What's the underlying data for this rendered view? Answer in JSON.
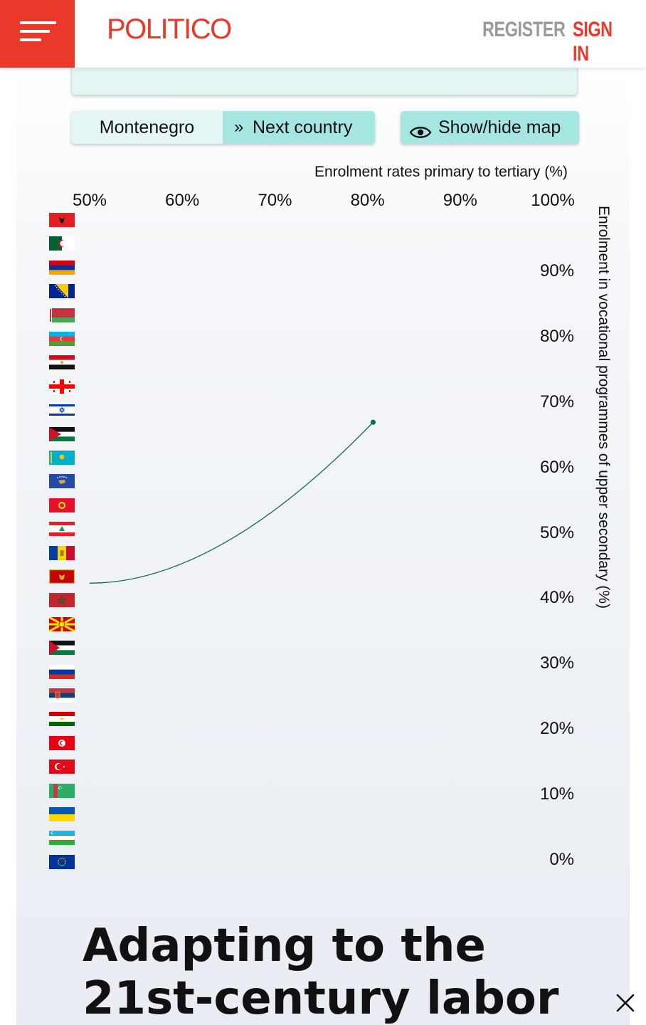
{
  "header": {
    "logo": "POLITICO",
    "register_label": "REGISTER",
    "signin_label": "SIGN IN",
    "menu_icon": "hamburger-menu-icon",
    "brand_color": "#e8392b"
  },
  "controls": {
    "selected_country": "Montenegro",
    "next_label": "Next country",
    "next_icon": "double-chevron-right-icon",
    "map_label": "Show/hide map",
    "map_icon": "eye-icon",
    "accent_color": "#a6e6e1"
  },
  "flags": [
    "Albania",
    "Algeria",
    "Armenia",
    "Bosnia and Herzegovina",
    "Belarus",
    "Azerbaijan",
    "Egypt",
    "Georgia",
    "Israel",
    "Jordan",
    "Kazakhstan",
    "Kosovo",
    "Kyrgyzstan",
    "Lebanon",
    "Moldova",
    "Montenegro",
    "Morocco",
    "North Macedonia",
    "Palestine",
    "Russia",
    "Serbia",
    "Tajikistan",
    "Tunisia",
    "Turkey",
    "Turkmenistan",
    "Ukraine",
    "Uzbekistan",
    "European Union"
  ],
  "chart_data": {
    "type": "line",
    "xlabel": "Enrolment rates primary to tertiary (%)",
    "ylabel": "Enrolment in vocational programmes of upper secondary (%)",
    "x_ticks": [
      "50%",
      "60%",
      "70%",
      "80%",
      "90%",
      "100%"
    ],
    "y_ticks": [
      "90%",
      "80%",
      "70%",
      "60%",
      "50%",
      "40%",
      "30%",
      "20%",
      "10%",
      "0%"
    ],
    "xlim": [
      50,
      100
    ],
    "ylim": [
      0,
      90
    ],
    "x_axis_position": "top",
    "y_axis_position": "right",
    "grid": false,
    "series": [
      {
        "country": "Montenegro",
        "x": [
          50,
          80.6
        ],
        "y": [
          42.3,
          66.9
        ],
        "color": "#0f6b57",
        "end_marker": true
      }
    ]
  },
  "article": {
    "headline": "Adapting to the 21st-century labor"
  },
  "close_icon": "close-icon"
}
